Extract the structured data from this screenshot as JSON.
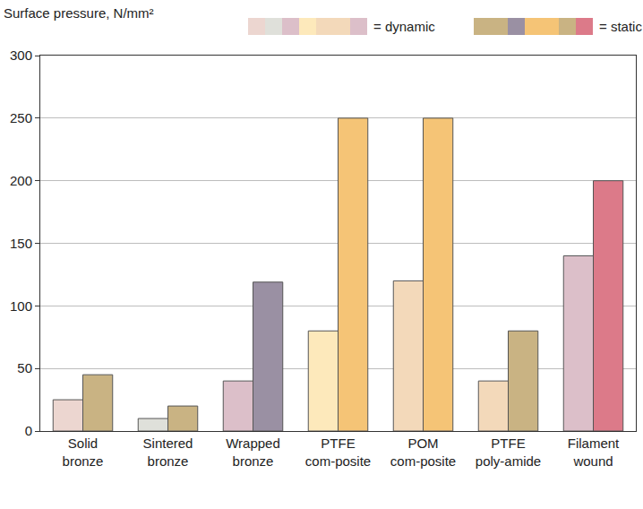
{
  "chart_data": {
    "type": "bar",
    "title": "Surface pressure, N/mm²",
    "categories": [
      "Solid bronze",
      "Sintered bronze",
      "Wrapped bronze",
      "PTFE com-posite",
      "POM com-posite",
      "PTFE poly-amide",
      "Filament wound"
    ],
    "series": [
      {
        "name": "= dynamic",
        "values": [
          25,
          10,
          40,
          80,
          120,
          40,
          140
        ],
        "colors": [
          "#ecd6d0",
          "#dfe0da",
          "#dcbfc9",
          "#fde9bb",
          "#f3d9ba",
          "#f3d9ba",
          "#dcbfc9"
        ]
      },
      {
        "name": "= static",
        "values": [
          45,
          20,
          119,
          250,
          250,
          80,
          200
        ],
        "colors": [
          "#c9b383",
          "#c9b383",
          "#9a90a3",
          "#f5c476",
          "#f5c476",
          "#c9b383",
          "#dc7a89"
        ]
      }
    ],
    "ylim": [
      0,
      300
    ],
    "yticks": [
      0,
      50,
      100,
      150,
      200,
      250,
      300
    ],
    "grid": true,
    "legend": "top"
  }
}
